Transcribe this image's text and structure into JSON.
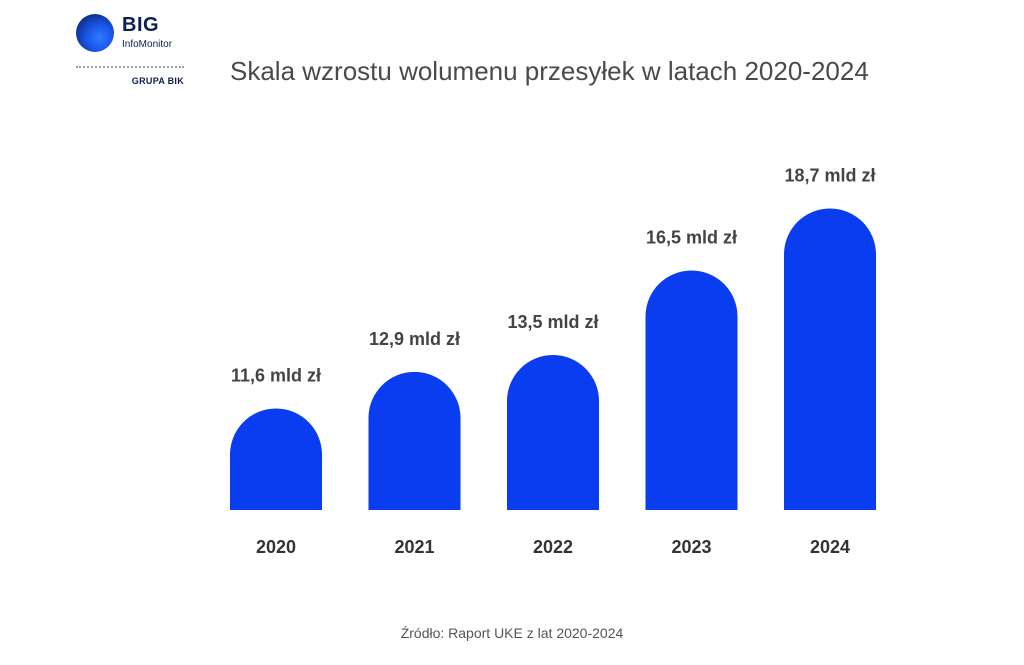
{
  "logo": {
    "brand": "BIG",
    "sub": "InfoMonitor",
    "group": "GRUPA BIK"
  },
  "title": "Skala wzrostu wolumenu przesyłek w latach 2020-2024",
  "source": "Źródło: Raport UKE z lat 2020-2024",
  "colors": {
    "bar": "#0a3cf0"
  },
  "chart_data": {
    "type": "bar",
    "categories": [
      "2020",
      "2021",
      "2022",
      "2023",
      "2024"
    ],
    "values": [
      11.6,
      12.9,
      13.5,
      16.5,
      18.7
    ],
    "data_labels": [
      "11,6 mld zł",
      "12,9 mld zł",
      "13,5 mld zł",
      "16,5 mld zł",
      "18,7 mld zł"
    ],
    "title": "Skala wzrostu wolumenu przesyłek w latach 2020-2024",
    "xlabel": "",
    "ylabel": "",
    "ylim": [
      8,
      19
    ],
    "grid": false
  }
}
